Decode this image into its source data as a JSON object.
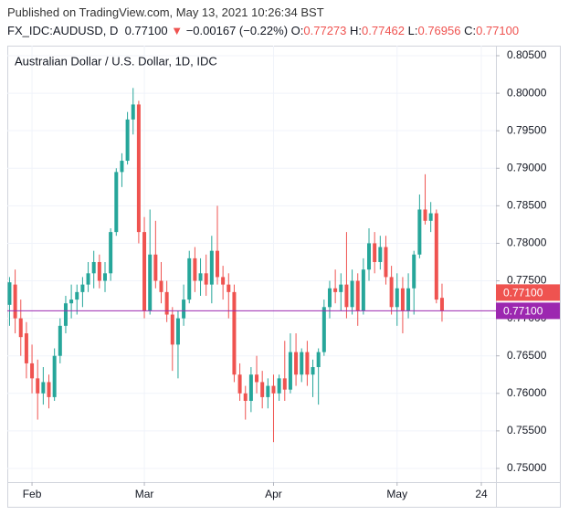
{
  "header": {
    "published": "Published on TradingView.com, May 13, 2021 10:26:34 BST",
    "symbol": "FX_IDC:AUDUSD, D",
    "price": "0.77100",
    "arrow": "▼",
    "change": "−0.00167 (−0.22%)",
    "ohlc": [
      {
        "label": "O:",
        "value": "0.77273"
      },
      {
        "label": "H:",
        "value": "0.77462"
      },
      {
        "label": "L:",
        "value": "0.76956"
      },
      {
        "label": "C:",
        "value": "0.77100"
      }
    ]
  },
  "chart_data": {
    "type": "candlestick",
    "title": "Australian Dollar / U.S. Dollar, 1D, IDC",
    "up_color": "#26a69a",
    "down_color": "#ef5350",
    "grid": true,
    "xlim": [
      -0.4,
      86.6
    ],
    "xticks": [
      {
        "value": 4,
        "label": "Feb"
      },
      {
        "value": 24,
        "label": "Mar"
      },
      {
        "value": 47,
        "label": "Apr"
      },
      {
        "value": 69,
        "label": "May"
      },
      {
        "value": 84,
        "label": "24"
      }
    ],
    "ylim": [
      0.74817,
      0.80634
    ],
    "yticks": [
      {
        "value": 0.75,
        "label": "0.75000"
      },
      {
        "value": 0.755,
        "label": "0.75500"
      },
      {
        "value": 0.76,
        "label": "0.76000"
      },
      {
        "value": 0.765,
        "label": "0.76500"
      },
      {
        "value": 0.77,
        "label": "0.77000"
      },
      {
        "value": 0.775,
        "label": "0.77500"
      },
      {
        "value": 0.78,
        "label": "0.78000"
      },
      {
        "value": 0.785,
        "label": "0.78500"
      },
      {
        "value": 0.79,
        "label": "0.79000"
      },
      {
        "value": 0.795,
        "label": "0.79500"
      },
      {
        "value": 0.8,
        "label": "0.80000"
      },
      {
        "value": 0.805,
        "label": "0.80500"
      }
    ],
    "open": [
      0.7718,
      0.7745,
      0.77,
      0.768,
      0.764,
      0.762,
      0.76,
      0.7615,
      0.7595,
      0.765,
      0.769,
      0.772,
      0.7725,
      0.7735,
      0.7745,
      0.776,
      0.7775,
      0.775,
      0.776,
      0.7815,
      0.7895,
      0.791,
      0.7965,
      0.7985,
      0.7815,
      0.771,
      0.7785,
      0.775,
      0.7735,
      0.7705,
      0.7665,
      0.77,
      0.7725,
      0.778,
      0.775,
      0.776,
      0.7745,
      0.779,
      0.7755,
      0.7745,
      0.7735,
      0.7625,
      0.76,
      0.759,
      0.7625,
      0.7615,
      0.7595,
      0.761,
      0.76,
      0.762,
      0.7605,
      0.7655,
      0.7625,
      0.7655,
      0.7625,
      0.7635,
      0.7655,
      0.7715,
      0.774,
      0.7735,
      0.7745,
      0.7715,
      0.775,
      0.771,
      0.7765,
      0.78,
      0.7775,
      0.7795,
      0.7755,
      0.7715,
      0.774,
      0.771,
      0.774,
      0.7785,
      0.7845,
      0.783,
      0.784,
      0.77273
    ],
    "high": [
      0.7755,
      0.7765,
      0.7725,
      0.7695,
      0.7665,
      0.7645,
      0.7635,
      0.7625,
      0.766,
      0.77,
      0.773,
      0.7745,
      0.7745,
      0.7755,
      0.7775,
      0.779,
      0.7785,
      0.7775,
      0.782,
      0.79,
      0.792,
      0.7975,
      0.8007,
      0.799,
      0.7835,
      0.7845,
      0.783,
      0.7775,
      0.775,
      0.7715,
      0.771,
      0.7745,
      0.779,
      0.7795,
      0.778,
      0.7785,
      0.781,
      0.785,
      0.777,
      0.776,
      0.7745,
      0.764,
      0.761,
      0.7635,
      0.765,
      0.763,
      0.762,
      0.7625,
      0.7625,
      0.767,
      0.768,
      0.768,
      0.766,
      0.767,
      0.7645,
      0.766,
      0.7725,
      0.775,
      0.7765,
      0.776,
      0.7815,
      0.7765,
      0.776,
      0.778,
      0.782,
      0.7815,
      0.781,
      0.781,
      0.777,
      0.776,
      0.7755,
      0.776,
      0.779,
      0.7865,
      0.7892,
      0.7855,
      0.7845,
      0.77462
    ],
    "low": [
      0.769,
      0.768,
      0.765,
      0.762,
      0.76,
      0.7565,
      0.7585,
      0.758,
      0.759,
      0.764,
      0.768,
      0.77,
      0.7705,
      0.7715,
      0.7735,
      0.774,
      0.774,
      0.7735,
      0.775,
      0.781,
      0.7875,
      0.7905,
      0.7945,
      0.78,
      0.77,
      0.7705,
      0.774,
      0.772,
      0.7695,
      0.763,
      0.762,
      0.769,
      0.772,
      0.7735,
      0.773,
      0.773,
      0.772,
      0.7745,
      0.7725,
      0.77,
      0.7615,
      0.759,
      0.7565,
      0.7575,
      0.76,
      0.758,
      0.758,
      0.7535,
      0.759,
      0.759,
      0.76,
      0.761,
      0.7615,
      0.761,
      0.7595,
      0.7585,
      0.765,
      0.77,
      0.772,
      0.771,
      0.77,
      0.7705,
      0.769,
      0.7705,
      0.775,
      0.776,
      0.7765,
      0.7745,
      0.7705,
      0.769,
      0.768,
      0.77,
      0.7705,
      0.778,
      0.7825,
      0.7815,
      0.772,
      0.76956
    ],
    "close": [
      0.7748,
      0.77,
      0.7675,
      0.764,
      0.762,
      0.76,
      0.7615,
      0.7595,
      0.765,
      0.769,
      0.772,
      0.7725,
      0.7735,
      0.7745,
      0.776,
      0.7775,
      0.775,
      0.776,
      0.7815,
      0.7895,
      0.791,
      0.7965,
      0.7985,
      0.7815,
      0.771,
      0.7785,
      0.775,
      0.7735,
      0.7705,
      0.7665,
      0.77,
      0.7725,
      0.778,
      0.775,
      0.776,
      0.7745,
      0.779,
      0.7755,
      0.7745,
      0.7735,
      0.7625,
      0.76,
      0.759,
      0.7625,
      0.7615,
      0.7595,
      0.761,
      0.76,
      0.762,
      0.7605,
      0.7655,
      0.7625,
      0.7655,
      0.7625,
      0.7635,
      0.7655,
      0.7715,
      0.774,
      0.7735,
      0.7745,
      0.7715,
      0.775,
      0.771,
      0.7765,
      0.78,
      0.7775,
      0.7795,
      0.7755,
      0.7715,
      0.774,
      0.771,
      0.774,
      0.7785,
      0.7845,
      0.783,
      0.784,
      0.7725,
      0.771
    ],
    "close_label": {
      "value": 0.771,
      "label": "0.77100",
      "color": "#ef5350"
    },
    "price_line": {
      "value": 0.771,
      "label": "0.77100",
      "color": "#9c27b0"
    }
  }
}
